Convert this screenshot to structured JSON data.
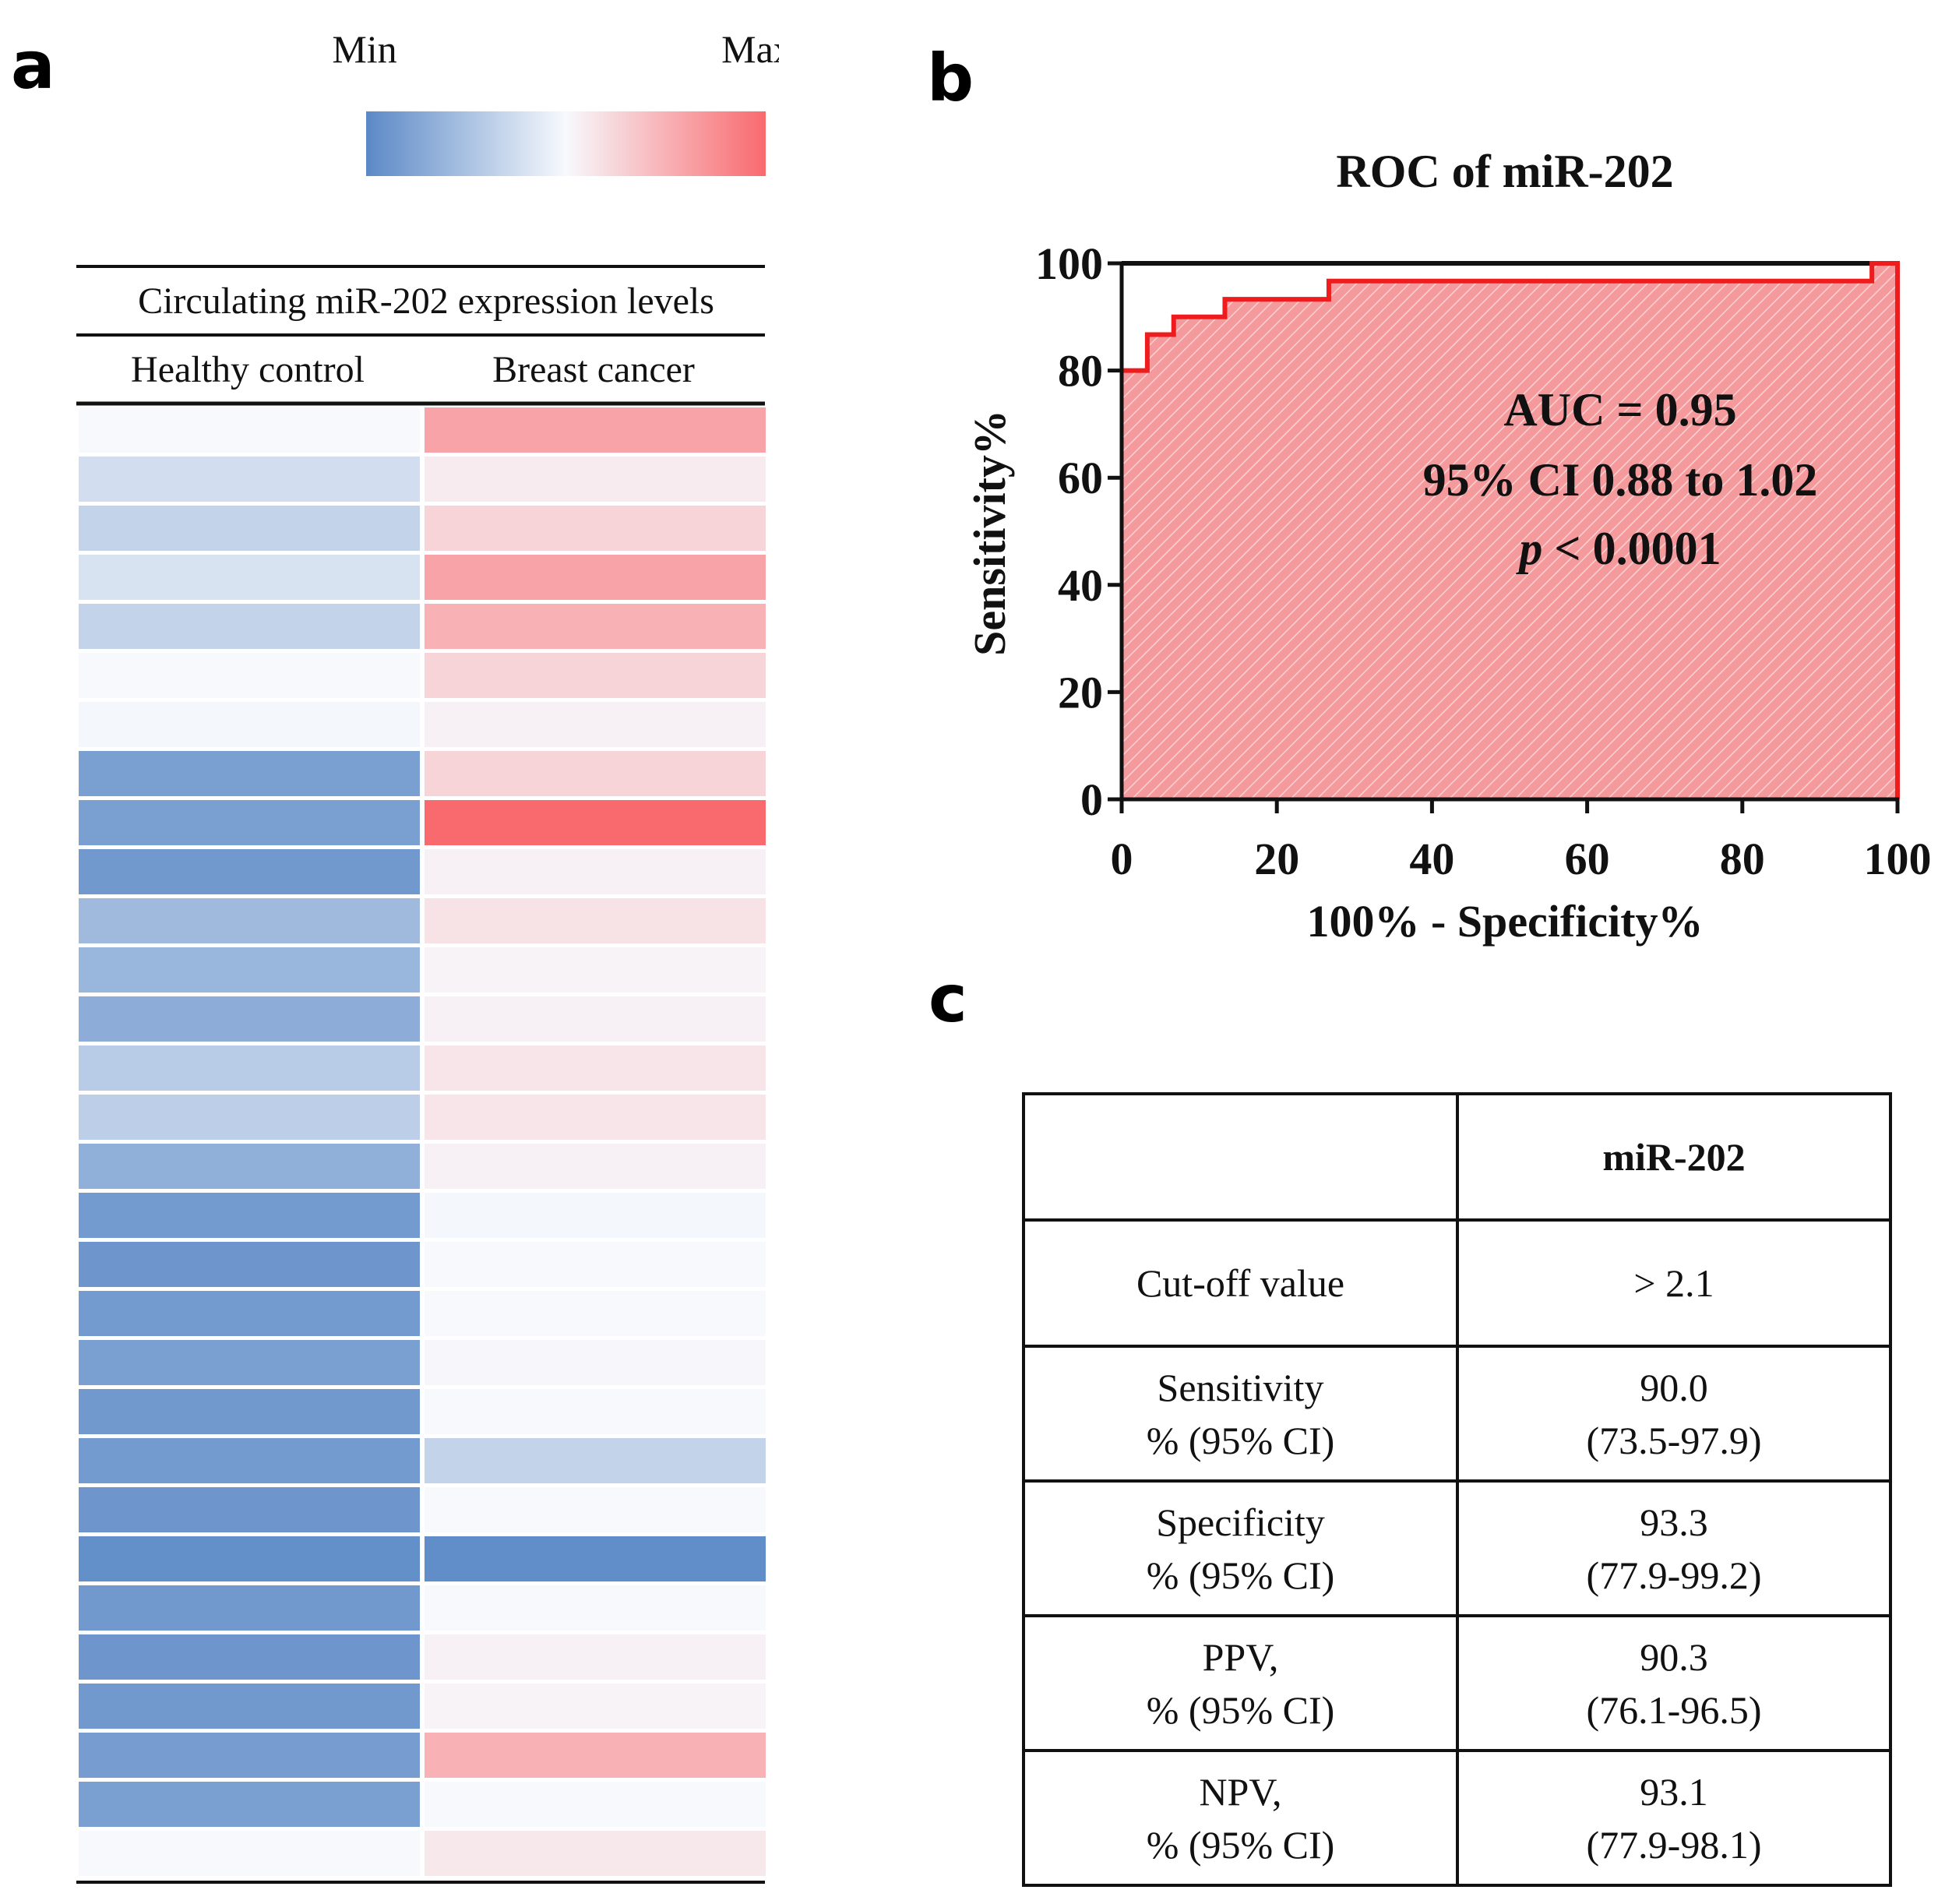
{
  "panels": {
    "a": "a",
    "b": "b",
    "c": "c"
  },
  "heatmap": {
    "legend_min": "Min",
    "legend_max": "Max",
    "colors": {
      "min": "#5b89c6",
      "mid": "#f7f9fd",
      "max": "#f86a6e"
    },
    "title": "Circulating miR-202 expression levels",
    "columns": [
      "Healthy control",
      "Breast cancer"
    ],
    "healthy_control": [
      0.5,
      0.38,
      0.33,
      0.4,
      0.33,
      0.5,
      0.49,
      0.1,
      0.1,
      0.07,
      0.22,
      0.2,
      0.16,
      0.3,
      0.31,
      0.17,
      0.08,
      0.06,
      0.08,
      0.1,
      0.07,
      0.08,
      0.06,
      0.03,
      0.07,
      0.06,
      0.07,
      0.09,
      0.1,
      0.5
    ],
    "breast_cancer": [
      0.8,
      0.55,
      0.63,
      0.8,
      0.75,
      0.63,
      0.53,
      0.63,
      1.0,
      0.53,
      0.58,
      0.52,
      0.53,
      0.57,
      0.57,
      0.53,
      0.49,
      0.5,
      0.5,
      0.51,
      0.5,
      0.33,
      0.5,
      0.02,
      0.5,
      0.53,
      0.52,
      0.75,
      0.5,
      0.56
    ]
  },
  "chart_data": {
    "type": "line",
    "title": "ROC of miR-202",
    "xlabel": "100% - Specificity%",
    "ylabel": "Sensitivity%",
    "xlim": [
      0,
      100
    ],
    "ylim": [
      0,
      100
    ],
    "xticks": [
      0,
      20,
      40,
      60,
      80,
      100
    ],
    "yticks": [
      0,
      20,
      40,
      60,
      80,
      100
    ],
    "series": [
      {
        "name": "miR-202 ROC",
        "color": "#ee1c1c",
        "fill": "#f59a9c",
        "x": [
          0,
          3.3,
          3.3,
          6.7,
          6.7,
          13.3,
          13.3,
          26.7,
          26.7,
          96.7,
          96.7,
          100
        ],
        "y": [
          80,
          80,
          86.7,
          86.7,
          90,
          90,
          93.3,
          93.3,
          96.7,
          96.7,
          100,
          100
        ]
      }
    ],
    "annotations": [
      "AUC = 0.95",
      "95% CI 0.88 to 1.02",
      "p",
      " < 0.0001"
    ]
  },
  "stats_table": {
    "header": [
      "",
      "miR-202"
    ],
    "rows": [
      {
        "label": [
          "Cut-off value"
        ],
        "value": [
          "> 2.1"
        ]
      },
      {
        "label": [
          "Sensitivity",
          "% (95% CI)"
        ],
        "value": [
          "90.0",
          "(73.5-97.9)"
        ]
      },
      {
        "label": [
          "Specificity",
          "% (95% CI)"
        ],
        "value": [
          "93.3",
          "(77.9-99.2)"
        ]
      },
      {
        "label": [
          "PPV,",
          "% (95% CI)"
        ],
        "value": [
          "90.3",
          "(76.1-96.5)"
        ]
      },
      {
        "label": [
          "NPV,",
          "% (95% CI)"
        ],
        "value": [
          "93.1",
          "(77.9-98.1)"
        ]
      }
    ]
  }
}
